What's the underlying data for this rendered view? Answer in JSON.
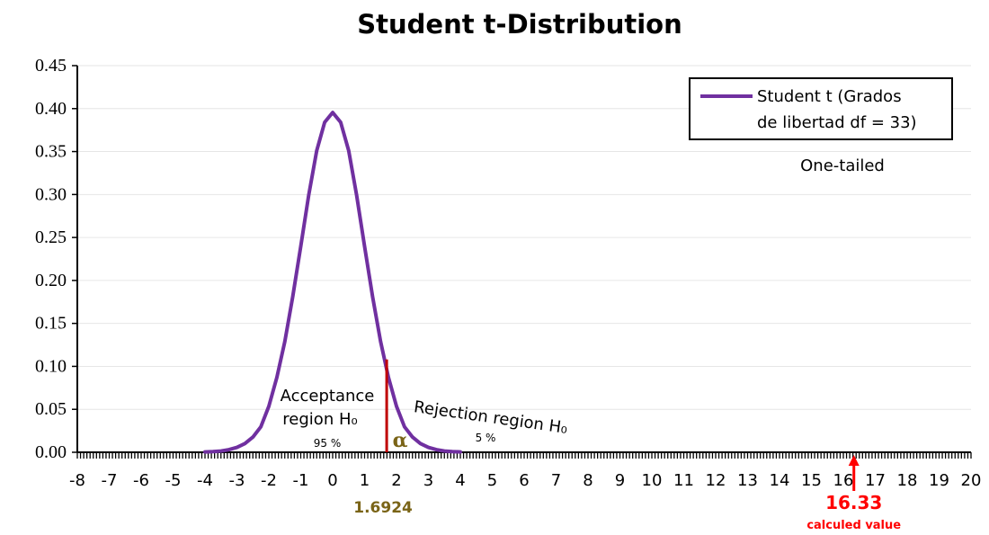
{
  "chart_data": {
    "type": "line",
    "title": "Student t-Distribution",
    "xlabel": "",
    "ylabel": "",
    "xlim": [
      -8,
      20
    ],
    "ylim": [
      0,
      0.45
    ],
    "grid": true,
    "legend_position": "top-right",
    "x_ticks": [
      "-8",
      "-7",
      "-6",
      "-5",
      "-4",
      "-3",
      "-2",
      "-1",
      "0",
      "1",
      "2",
      "3",
      "4",
      "5",
      "6",
      "7",
      "8",
      "9",
      "10",
      "11",
      "12",
      "13",
      "14",
      "15",
      "16",
      "17",
      "18",
      "19",
      "20"
    ],
    "y_ticks": [
      "0.00",
      "0.05",
      "0.10",
      "0.15",
      "0.20",
      "0.25",
      "0.30",
      "0.35",
      "0.40",
      "0.45"
    ],
    "series": [
      {
        "name": "Student t (Grados de libertad df = 33)",
        "color": "#7030a0",
        "x": [
          -4,
          -3.75,
          -3.5,
          -3.25,
          -3,
          -2.75,
          -2.5,
          -2.25,
          -2,
          -1.75,
          -1.5,
          -1.25,
          -1,
          -0.75,
          -0.5,
          -0.25,
          0,
          0.25,
          0.5,
          0.75,
          1,
          1.25,
          1.5,
          1.75,
          2,
          2.25,
          2.5,
          2.75,
          3,
          3.25,
          3.5,
          3.75,
          4
        ],
        "y": [
          0.0004,
          0.0008,
          0.0015,
          0.003,
          0.0056,
          0.0101,
          0.0177,
          0.0296,
          0.0535,
          0.087,
          0.1289,
          0.1811,
          0.2395,
          0.2995,
          0.3512,
          0.3841,
          0.3955,
          0.3841,
          0.3512,
          0.2995,
          0.2395,
          0.1811,
          0.1289,
          0.087,
          0.0535,
          0.0296,
          0.0177,
          0.0101,
          0.0056,
          0.003,
          0.0015,
          0.0008,
          0.0004
        ]
      }
    ],
    "legend_line1": "Student t (Grados",
    "legend_line2": "de libertad df = 33)",
    "test_note": "One-tailed",
    "acceptance_line1": "Acceptance",
    "acceptance_line2": "region H₀",
    "acceptance_pct": "95 %",
    "rejection_label": "Rejection region H₀",
    "rejection_pct": "5 %",
    "alpha_symbol": "α",
    "critical_value": 1.6924,
    "critical_label": "1.6924",
    "critical_marker_height": 0.108,
    "critical_color": "#c00000",
    "calculated_value": 16.33,
    "calculated_label": "16.33",
    "calculated_caption": "calculed value",
    "calculated_color": "#ff0000"
  }
}
